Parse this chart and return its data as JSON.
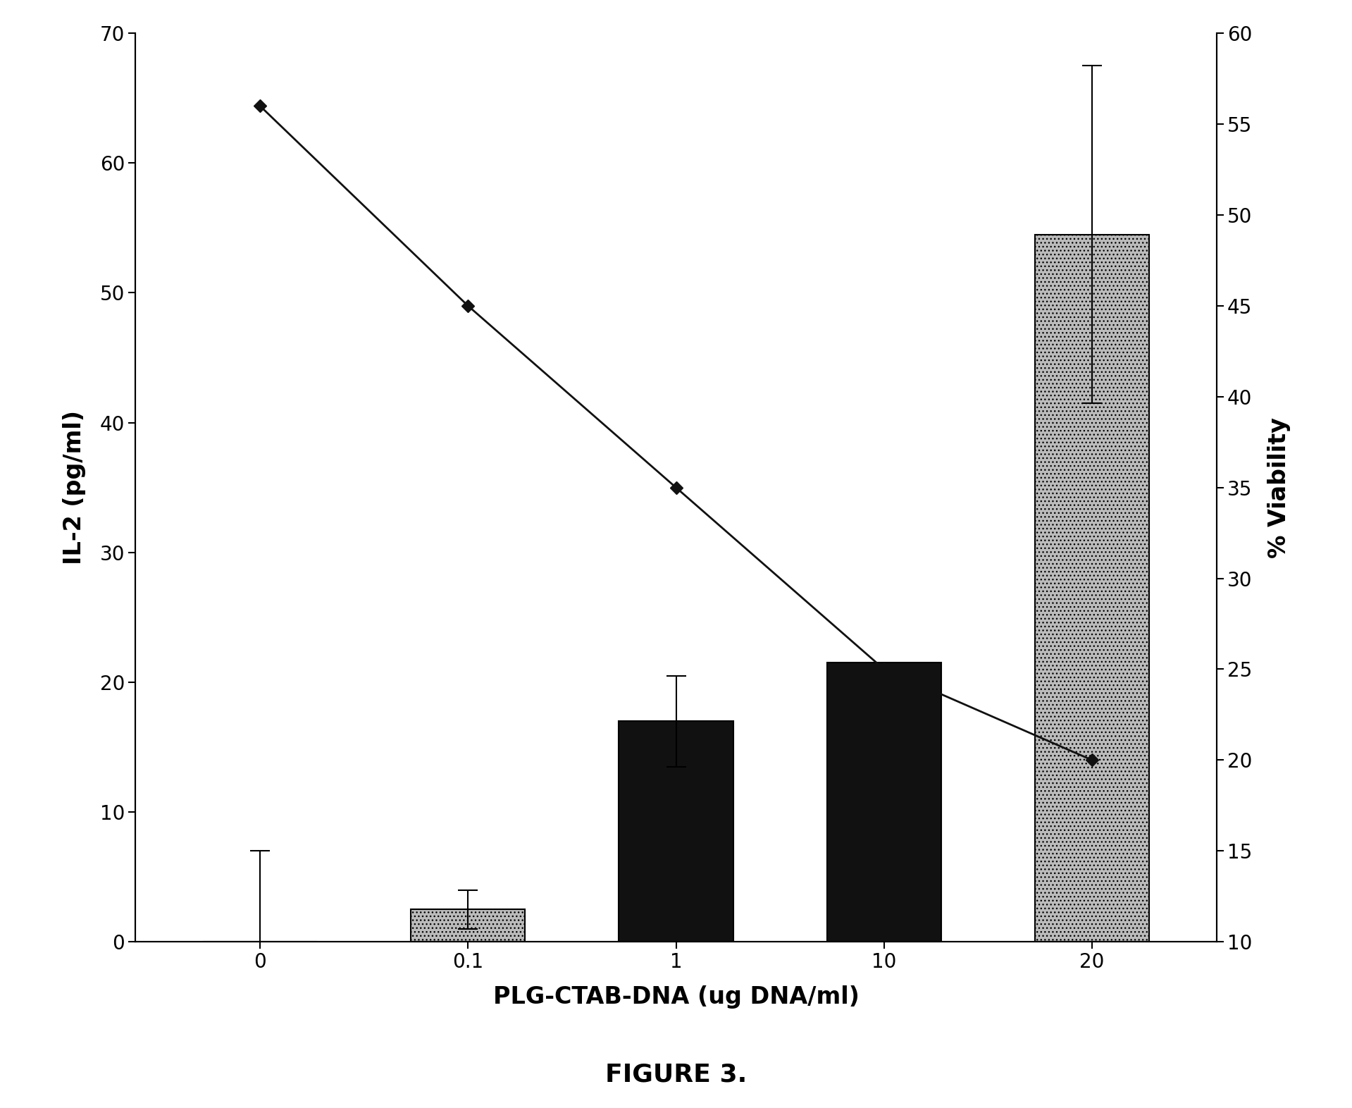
{
  "x_labels": [
    "0",
    "0.1",
    "1",
    "10",
    "20"
  ],
  "x_positions": [
    0,
    1,
    2,
    3,
    4
  ],
  "bar_heights": [
    0.0,
    2.5,
    17.0,
    21.5,
    54.5
  ],
  "bar_errors": [
    7.0,
    1.5,
    3.5,
    0.0,
    13.0
  ],
  "bar_colors_gray": "#bbbbbb",
  "bar_colors_black": "#111111",
  "bar_is_gray": [
    true,
    true,
    false,
    false,
    true
  ],
  "line_x": [
    0,
    1,
    2,
    3,
    4
  ],
  "line_y_right": [
    56.0,
    45.0,
    35.0,
    25.0,
    20.0
  ],
  "line_color": "#111111",
  "marker": "D",
  "marker_size": 9,
  "left_ylabel": "IL-2 (pg/ml)",
  "right_ylabel": "% Viability",
  "xlabel": "PLG-CTAB-DNA (ug DNA/ml)",
  "left_ylim": [
    0,
    70
  ],
  "left_yticks": [
    0,
    10,
    20,
    30,
    40,
    50,
    60,
    70
  ],
  "right_ylim": [
    10,
    60
  ],
  "right_yticks": [
    10,
    15,
    20,
    25,
    30,
    35,
    40,
    45,
    50,
    55,
    60
  ],
  "title": "FIGURE 3.",
  "background_color": "#ffffff",
  "title_fontsize": 26,
  "axis_label_fontsize": 24,
  "tick_fontsize": 20
}
